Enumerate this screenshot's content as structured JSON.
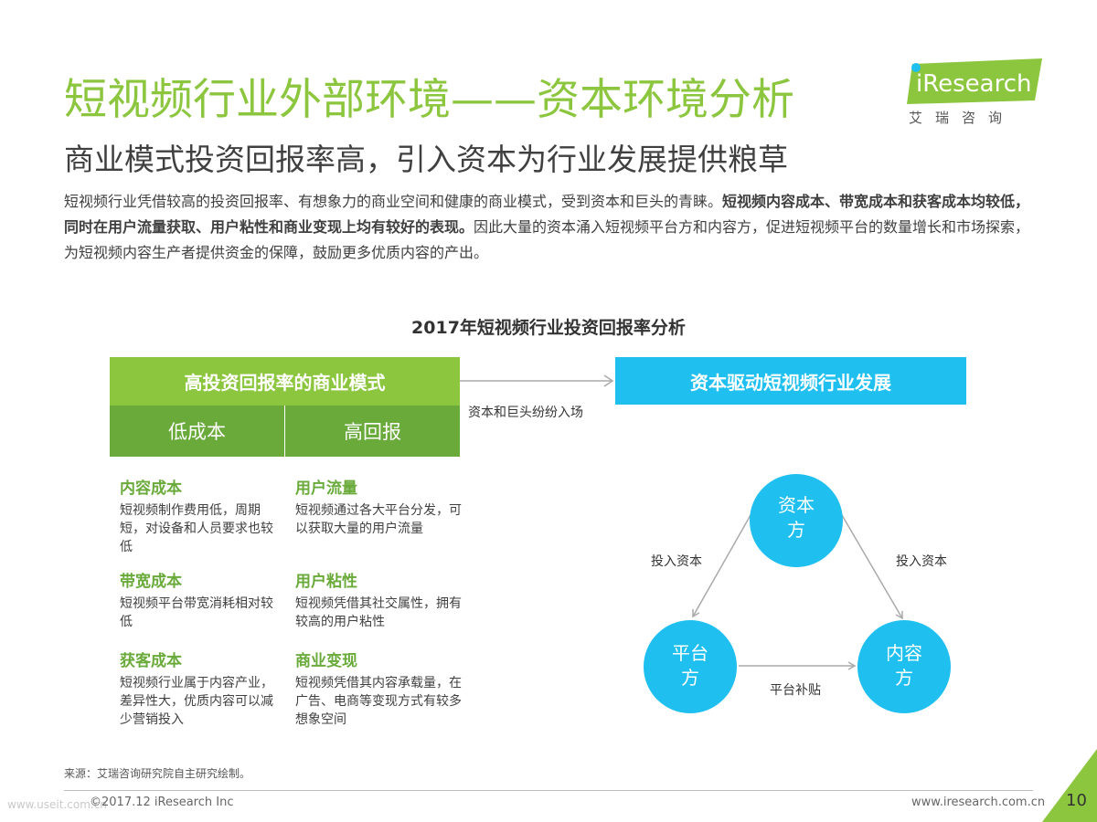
{
  "header": {
    "title": "短视频行业外部环境——资本环境分析",
    "subtitle": "商业模式投资回报率高，引入资本为行业发展提供粮草",
    "logo_text": "iResearch",
    "logo_cn": "艾瑞咨询"
  },
  "intro": {
    "part1": "短视频行业凭借较高的投资回报率、有想象力的商业空间和健康的商业模式，受到资本和巨头的青睐。",
    "bold": "短视频内容成本、带宽成本和获客成本均较低，同时在用户流量获取、用户粘性和商业变现上均有较好的表现。",
    "part2": "因此大量的资本涌入短视频平台方和内容方，促进短视频平台的数量增长和市场探索，为短视频内容生产者提供资金的保障，鼓励更多优质内容的产出。"
  },
  "diagram": {
    "title": "2017年短视频行业投资回报率分析",
    "green_box": "高投资回报率的商业模式",
    "low_cost": "低成本",
    "high_return": "高回报",
    "blue_box": "资本驱动短视频行业发展",
    "arrow_label": "资本和巨头纷纷入场",
    "left_features": [
      {
        "title": "内容成本",
        "desc": "短视频制作费用低，周期短，对设备和人员要求也较低"
      },
      {
        "title": "带宽成本",
        "desc": "短视频平台带宽消耗相对较低"
      },
      {
        "title": "获客成本",
        "desc": "短视频行业属于内容产业，差异性大，优质内容可以减少营销投入"
      }
    ],
    "right_features": [
      {
        "title": "用户流量",
        "desc": "短视频通过各大平台分发，可以获取大量的用户流量"
      },
      {
        "title": "用户粘性",
        "desc": "短视频凭借其社交属性，拥有较高的用户粘性"
      },
      {
        "title": "商业变现",
        "desc": "短视频凭借其内容承载量，在广告、电商等变现方式有较多想象空间"
      }
    ],
    "triangle": {
      "capital_line1": "资本",
      "capital_line2": "方",
      "platform_line1": "平台",
      "platform_line2": "方",
      "content_line1": "内容",
      "content_line2": "方",
      "left_edge": "投入资本",
      "right_edge": "投入资本",
      "bottom_edge": "平台补贴"
    },
    "colors": {
      "green": "#8cc63f",
      "dark_green": "#6aaa3b",
      "blue": "#1fbff0"
    }
  },
  "footer": {
    "source": "来源：艾瑞咨询研究院自主研究绘制。",
    "copyright": "©2017.12 iResearch Inc",
    "watermark": "www.useit.com.cn",
    "site": "www.iresearch.com.cn",
    "page": "10"
  }
}
